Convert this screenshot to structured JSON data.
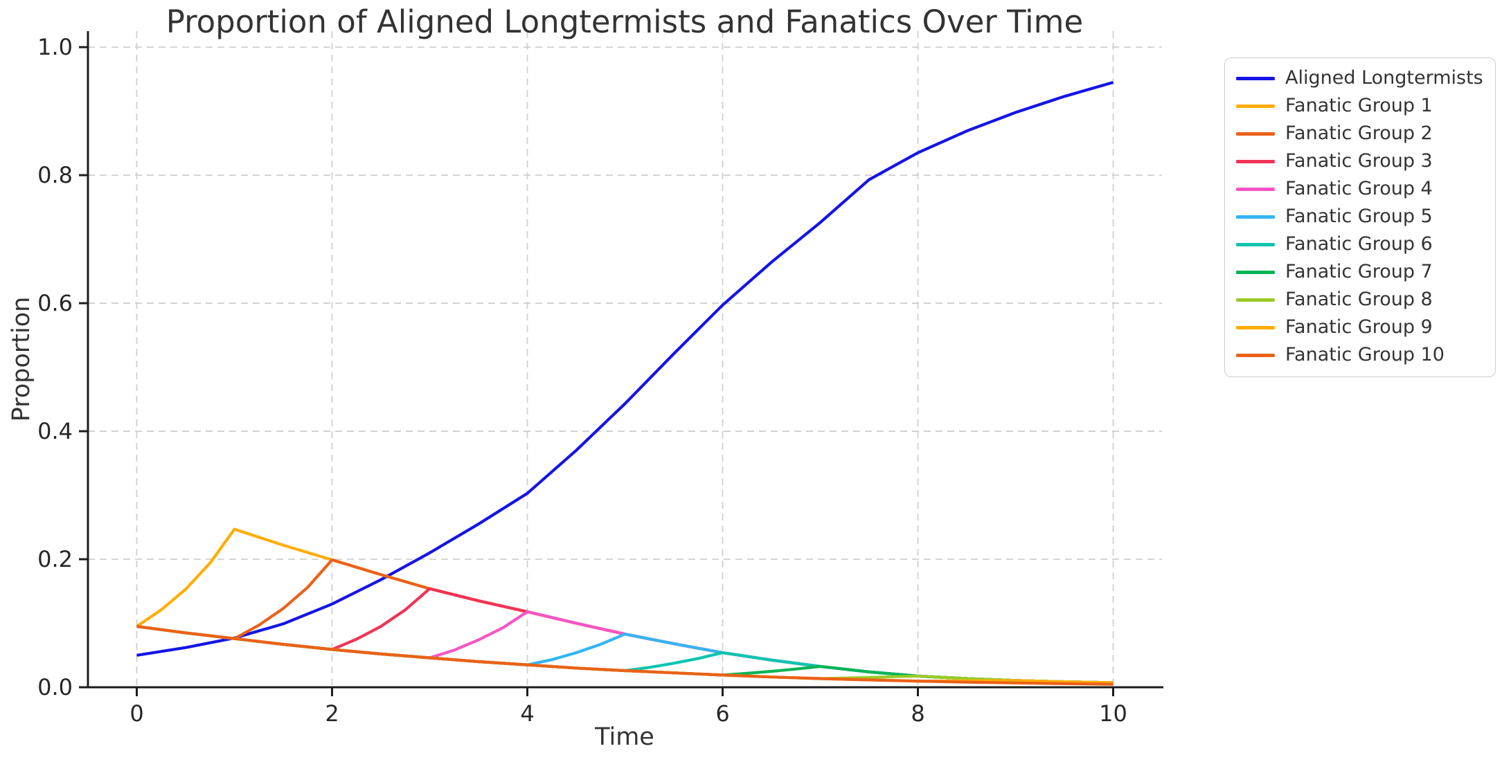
{
  "figure": {
    "title": "Proportion of Aligned Longtermists and Fanatics Over Time",
    "xlabel": "Time",
    "ylabel": "Proportion"
  },
  "colors": {
    "background": "#ffffff",
    "grid": "#cccccc",
    "spine": "#1c1c1c",
    "tick_label": "#262626",
    "text": "#333333",
    "legend_border": "#cccccc"
  },
  "chart_data": {
    "type": "line",
    "title": "Proportion of Aligned Longtermists and Fanatics Over Time",
    "xlabel": "Time",
    "ylabel": "Proportion",
    "xlim": [
      -0.5,
      10.5
    ],
    "ylim": [
      0,
      1.025
    ],
    "x_ticks": [
      0,
      2,
      4,
      6,
      8,
      10
    ],
    "y_ticks": [
      0.0,
      0.2,
      0.4,
      0.6,
      0.8,
      1.0
    ],
    "grid": true,
    "grid_style": "dashed",
    "legend_position": "outside-upper-right",
    "series": [
      {
        "name": "Aligned Longtermists",
        "color": "#1414E6",
        "x": [
          0,
          0.5,
          1,
          1.5,
          2,
          2.5,
          3,
          3.5,
          4,
          4.5,
          5,
          5.5,
          6,
          6.5,
          7,
          7.5,
          8,
          8.5,
          9,
          9.5,
          10
        ],
        "y": [
          0.05,
          0.062,
          0.077,
          0.099,
          0.13,
          0.168,
          0.21,
          0.255,
          0.303,
          0.37,
          0.443,
          0.521,
          0.597,
          0.664,
          0.726,
          0.793,
          0.835,
          0.869,
          0.898,
          0.923,
          0.945
        ]
      },
      {
        "name": "Fanatic Group 1",
        "color": "#FFAD05",
        "x": [
          0,
          0.25,
          0.5,
          0.75,
          1,
          1.5,
          2,
          2.5,
          3,
          3.5,
          4,
          4.5,
          5,
          5.5,
          6,
          6.5,
          7,
          7.5,
          8,
          8.5,
          9,
          9.5,
          10
        ],
        "y": [
          0.095,
          0.121,
          0.153,
          0.194,
          0.247,
          0.222,
          0.199,
          0.176,
          0.154,
          0.135,
          0.118,
          0.1,
          0.083,
          0.068,
          0.054,
          0.0425,
          0.0325,
          0.024,
          0.0175,
          0.0135,
          0.0105,
          0.0085,
          0.007
        ]
      },
      {
        "name": "Fanatic Group 2",
        "color": "#EB6119",
        "x": [
          0,
          0.5,
          1,
          1.25,
          1.5,
          1.75,
          2,
          2.5,
          3,
          3.5,
          4,
          4.5,
          5,
          5.5,
          6,
          6.5,
          7,
          7.5,
          8,
          8.5,
          9,
          9.5,
          10
        ],
        "y": [
          0.095,
          0.085,
          0.076,
          0.097,
          0.123,
          0.156,
          0.199,
          0.176,
          0.154,
          0.135,
          0.118,
          0.1,
          0.083,
          0.068,
          0.054,
          0.0425,
          0.0325,
          0.024,
          0.0175,
          0.0135,
          0.0105,
          0.0085,
          0.007
        ]
      },
      {
        "name": "Fanatic Group 3",
        "color": "#F03357",
        "x": [
          0,
          0.5,
          1,
          1.5,
          2,
          2.25,
          2.5,
          2.75,
          3,
          3.5,
          4,
          4.5,
          5,
          5.5,
          6,
          6.5,
          7,
          7.5,
          8,
          8.5,
          9,
          9.5,
          10
        ],
        "y": [
          0.095,
          0.085,
          0.076,
          0.067,
          0.059,
          0.075,
          0.095,
          0.121,
          0.154,
          0.135,
          0.118,
          0.1,
          0.083,
          0.068,
          0.054,
          0.0425,
          0.0325,
          0.024,
          0.0175,
          0.0135,
          0.0105,
          0.0085,
          0.007
        ]
      },
      {
        "name": "Fanatic Group 4",
        "color": "#F456C5",
        "x": [
          0,
          0.5,
          1,
          1.5,
          2,
          2.5,
          3,
          3.25,
          3.5,
          3.75,
          4,
          4.5,
          5,
          5.5,
          6,
          6.5,
          7,
          7.5,
          8,
          8.5,
          9,
          9.5,
          10
        ],
        "y": [
          0.095,
          0.085,
          0.076,
          0.067,
          0.059,
          0.052,
          0.046,
          0.058,
          0.074,
          0.093,
          0.118,
          0.1,
          0.083,
          0.068,
          0.054,
          0.0425,
          0.0325,
          0.024,
          0.0175,
          0.0135,
          0.0105,
          0.0085,
          0.007
        ]
      },
      {
        "name": "Fanatic Group 5",
        "color": "#33B5F4",
        "x": [
          0,
          0.5,
          1,
          1.5,
          2,
          2.5,
          3,
          3.5,
          4,
          4.25,
          4.5,
          4.75,
          5,
          5.5,
          6,
          6.5,
          7,
          7.5,
          8,
          8.5,
          9,
          9.5,
          10
        ],
        "y": [
          0.095,
          0.085,
          0.076,
          0.067,
          0.059,
          0.052,
          0.046,
          0.04,
          0.035,
          0.043,
          0.054,
          0.067,
          0.083,
          0.068,
          0.054,
          0.0425,
          0.0325,
          0.024,
          0.0175,
          0.0135,
          0.0105,
          0.0085,
          0.007
        ]
      },
      {
        "name": "Fanatic Group 6",
        "color": "#0CC5AF",
        "x": [
          0,
          0.5,
          1,
          1.5,
          2,
          2.5,
          3,
          3.5,
          4,
          4.5,
          5,
          5.25,
          5.5,
          5.75,
          6,
          6.5,
          7,
          7.5,
          8,
          8.5,
          9,
          9.5,
          10
        ],
        "y": [
          0.095,
          0.085,
          0.076,
          0.067,
          0.059,
          0.052,
          0.046,
          0.04,
          0.035,
          0.03,
          0.026,
          0.031,
          0.0375,
          0.045,
          0.054,
          0.0425,
          0.0325,
          0.024,
          0.0175,
          0.0135,
          0.0105,
          0.0085,
          0.007
        ]
      },
      {
        "name": "Fanatic Group 7",
        "color": "#07B456",
        "x": [
          0,
          0.5,
          1,
          1.5,
          2,
          2.5,
          3,
          3.5,
          4,
          4.5,
          5,
          5.5,
          6,
          6.25,
          6.5,
          6.75,
          7,
          7.5,
          8,
          8.5,
          9,
          9.5,
          10
        ],
        "y": [
          0.095,
          0.085,
          0.076,
          0.067,
          0.059,
          0.052,
          0.046,
          0.04,
          0.035,
          0.03,
          0.026,
          0.0225,
          0.019,
          0.0217,
          0.0249,
          0.0284,
          0.0325,
          0.024,
          0.0175,
          0.0135,
          0.0105,
          0.0085,
          0.007
        ]
      },
      {
        "name": "Fanatic Group 8",
        "color": "#9BCB27",
        "x": [
          0,
          0.5,
          1,
          1.5,
          2,
          2.5,
          3,
          3.5,
          4,
          4.5,
          5,
          5.5,
          6,
          6.5,
          7,
          7.25,
          7.5,
          7.75,
          8,
          8.5,
          9,
          9.5,
          10
        ],
        "y": [
          0.095,
          0.085,
          0.076,
          0.067,
          0.059,
          0.052,
          0.046,
          0.04,
          0.035,
          0.03,
          0.026,
          0.0225,
          0.019,
          0.016,
          0.0135,
          0.0144,
          0.0154,
          0.0164,
          0.0175,
          0.0135,
          0.0105,
          0.0085,
          0.007
        ]
      },
      {
        "name": "Fanatic Group 9",
        "color": "#FFAD05",
        "x": [
          0,
          0.5,
          1,
          1.5,
          2,
          2.5,
          3,
          3.5,
          4,
          4.5,
          5,
          5.5,
          6,
          6.5,
          7,
          7.5,
          8,
          8.25,
          8.5,
          8.75,
          9,
          9.5,
          10
        ],
        "y": [
          0.095,
          0.085,
          0.076,
          0.067,
          0.059,
          0.052,
          0.046,
          0.04,
          0.035,
          0.03,
          0.026,
          0.0225,
          0.019,
          0.016,
          0.0135,
          0.0115,
          0.0095,
          0.0097,
          0.01,
          0.0102,
          0.0105,
          0.0085,
          0.007
        ]
      },
      {
        "name": "Fanatic Group 10",
        "color": "#EB6119",
        "x": [
          0,
          0.5,
          1,
          1.5,
          2,
          2.5,
          3,
          3.5,
          4,
          4.5,
          5,
          5.5,
          6,
          6.5,
          7,
          7.5,
          8,
          8.5,
          9,
          9.5,
          10
        ],
        "y": [
          0.095,
          0.085,
          0.076,
          0.067,
          0.059,
          0.052,
          0.046,
          0.04,
          0.035,
          0.03,
          0.026,
          0.0225,
          0.019,
          0.016,
          0.0135,
          0.0115,
          0.0095,
          0.008,
          0.0067,
          0.0056,
          0.0047
        ]
      }
    ]
  }
}
